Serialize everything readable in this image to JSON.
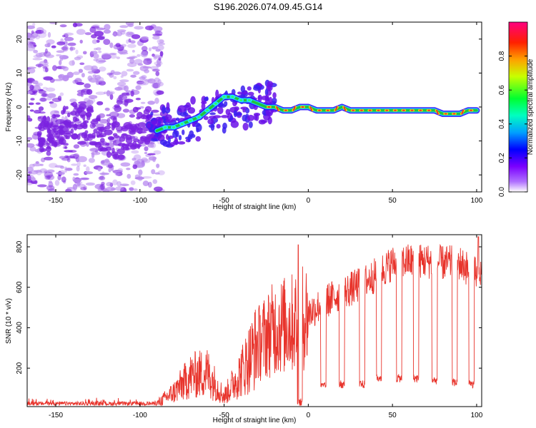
{
  "title": "S196.2026.074.09.45.G14",
  "colors": {
    "snr_line": "#e8342c",
    "ridge_core": "#e8342c",
    "ridge_mid": "#22c43a",
    "ridge_edge": "#1fd0e8",
    "scatter": "#7b22e0",
    "scatter_light": "#b98cf0"
  },
  "chart_data": [
    {
      "type": "heatmap",
      "title": "S196.2026.074.09.45.G14",
      "xlabel": "Height of straight line (km)",
      "ylabel": "Frequency (Hz)",
      "xlim": [
        -167,
        103
      ],
      "ylim": [
        -25,
        25
      ],
      "xticks": [
        -150,
        -100,
        -50,
        0,
        50,
        100
      ],
      "yticks": [
        -20,
        -10,
        0,
        10,
        20
      ],
      "ridge_x": [
        -90,
        -85,
        -80,
        -75,
        -70,
        -65,
        -60,
        -55,
        -50,
        -45,
        -40,
        -35,
        -30,
        -25,
        -20,
        -15,
        -10,
        -5,
        0,
        5,
        10,
        15,
        20,
        25,
        30,
        35,
        40,
        45,
        50,
        55,
        60,
        65,
        70,
        75,
        80,
        85,
        90,
        95,
        100
      ],
      "ridge_freq": [
        -7,
        -6,
        -6,
        -5,
        -4,
        -3,
        -1,
        1,
        3,
        3,
        2,
        2,
        1,
        0,
        0,
        -1,
        -1,
        0,
        0,
        -1,
        -1,
        -1,
        0,
        -1,
        -1,
        -1,
        -1,
        -1,
        -1,
        -1,
        -1,
        -1,
        -1,
        -1,
        -2,
        -2,
        -2,
        -1,
        -1
      ],
      "colorbar": {
        "label": "Normalized spectral amplitude",
        "range": [
          0,
          1
        ],
        "ticks": [
          "0.0",
          "0.2",
          "0.4",
          "0.6",
          "0.8"
        ],
        "stops": [
          "#ffffff",
          "#7a00ff",
          "#0000ff",
          "#00c0ff",
          "#00ff80",
          "#30ff00",
          "#e0ff00",
          "#ff8000",
          "#ff0000",
          "#ff0080"
        ]
      }
    },
    {
      "type": "line",
      "xlabel": "Height of straight line (km)",
      "ylabel": "SNR (10 * v/v)",
      "xlim": [
        -167,
        103
      ],
      "ylim": [
        10,
        860
      ],
      "xticks": [
        -150,
        -100,
        -50,
        0,
        50,
        100
      ],
      "yticks": [
        200,
        400,
        600,
        800
      ],
      "baseline": {
        "x": [
          -167,
          -90,
          -80,
          -70,
          -60,
          -50,
          -40,
          -30,
          -20,
          -10,
          0,
          10,
          20,
          30,
          40,
          50,
          60,
          70,
          80,
          90,
          100,
          103
        ],
        "snr": [
          25,
          25,
          80,
          160,
          180,
          60,
          180,
          320,
          400,
          420,
          470,
          530,
          570,
          610,
          660,
          720,
          730,
          730,
          720,
          720,
          660,
          660
        ]
      },
      "dropouts": [
        {
          "x": -5,
          "snr": 30
        },
        {
          "x": 9,
          "snr": 110
        },
        {
          "x": 20,
          "snr": 120
        },
        {
          "x": 32,
          "snr": 120
        },
        {
          "x": 42,
          "snr": 150
        },
        {
          "x": 54,
          "snr": 150
        },
        {
          "x": 64,
          "snr": 150
        },
        {
          "x": 75,
          "snr": 140
        },
        {
          "x": 87,
          "snr": 130
        },
        {
          "x": 97,
          "snr": 120
        }
      ],
      "peaks": [
        {
          "x": -6,
          "snr": 810
        },
        {
          "x": 101,
          "snr": 850
        }
      ]
    }
  ]
}
